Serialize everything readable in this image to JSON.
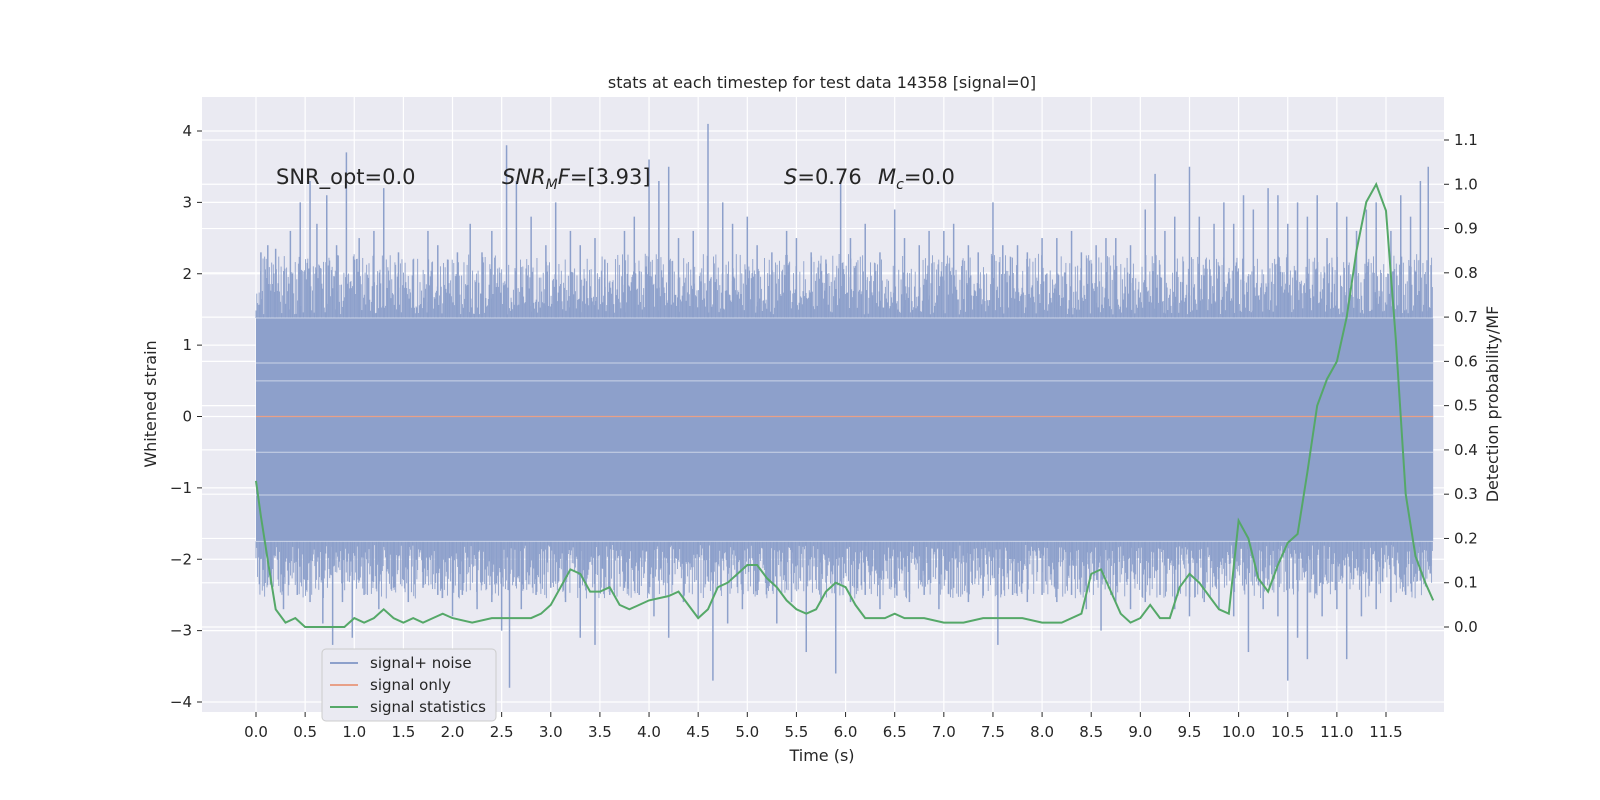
{
  "chart_data": {
    "type": "line",
    "title": "stats at each timestep for test data 14358 [signal=0]",
    "xlabel": "Time (s)",
    "ylabel": "Whitened strain",
    "y2label": "Detection probability/MF",
    "xlim": [
      -0.58,
      12.6
    ],
    "ylim": [
      -4.15,
      4.45
    ],
    "y2lim": [
      -0.2,
      1.2
    ],
    "xticks": [
      0.0,
      0.5,
      1.0,
      1.5,
      2.0,
      2.5,
      3.0,
      3.5,
      4.0,
      4.5,
      5.0,
      5.5,
      6.0,
      6.5,
      7.0,
      7.5,
      8.0,
      8.5,
      9.0,
      9.5,
      10.0,
      10.5,
      11.0,
      11.5
    ],
    "xtick_labels": [
      "0.0",
      "0.5",
      "1.0",
      "1.5",
      "2.0",
      "2.5",
      "3.0",
      "3.5",
      "4.0",
      "4.5",
      "5.0",
      "5.5",
      "6.0",
      "6.5",
      "7.0",
      "7.5",
      "8.0",
      "8.5",
      "9.0",
      "9.5",
      "10.0",
      "10.5",
      "11.0",
      "11.5"
    ],
    "yticks": [
      4,
      3,
      2,
      1,
      0,
      -1,
      -2,
      -3,
      -4
    ],
    "ytick_labels": [
      "4",
      "3",
      "2",
      "1",
      "0",
      "−1",
      "−2",
      "−3",
      "−4"
    ],
    "y2ticks": [
      1.1,
      1.0,
      0.9,
      0.8,
      0.7,
      0.6,
      0.5,
      0.4,
      0.3,
      0.2,
      0.1,
      0.0
    ],
    "y2tick_labels": [
      "1.1",
      "1.0",
      "0.9",
      "0.8",
      "0.7",
      "0.6",
      "0.5",
      "0.4",
      "0.3",
      "0.2",
      "0.1",
      "0.0"
    ],
    "annotations": {
      "snr_opt": "SNR_opt=0.0",
      "snr_mf_sym": "SNR",
      "snr_mf_sub": "M",
      "snr_mf_f": "F",
      "snr_mf_val": "=[3.93]",
      "s_sym": "S",
      "s_val": "=0.76",
      "mc_sym": "M",
      "mc_sub": "c",
      "mc_val": "=0.0"
    },
    "legend": {
      "placement": "lower-left",
      "entries": [
        "signal+ noise",
        "signal only",
        "signal statistics"
      ]
    },
    "series": [
      {
        "name": "signal+ noise",
        "color": "#8da0cb",
        "axis": "left",
        "x_start": 0.0,
        "x_end": 11.98,
        "band_upper": 1.38,
        "band_lower": -1.75,
        "spikes_up": [
          [
            0.05,
            2.3
          ],
          [
            0.12,
            2.4
          ],
          [
            0.2,
            2.35
          ],
          [
            0.35,
            2.6
          ],
          [
            0.45,
            3.0
          ],
          [
            0.55,
            3.3
          ],
          [
            0.62,
            2.7
          ],
          [
            0.72,
            3.1
          ],
          [
            0.82,
            2.4
          ],
          [
            0.92,
            3.7
          ],
          [
            1.05,
            2.5
          ],
          [
            1.2,
            2.6
          ],
          [
            1.3,
            3.2
          ],
          [
            1.45,
            2.3
          ],
          [
            1.6,
            2.2
          ],
          [
            1.75,
            2.6
          ],
          [
            1.85,
            2.4
          ],
          [
            1.95,
            2.2
          ],
          [
            2.05,
            2.3
          ],
          [
            2.18,
            2.7
          ],
          [
            2.3,
            2.3
          ],
          [
            2.4,
            2.6
          ],
          [
            2.55,
            3.8
          ],
          [
            2.65,
            3.3
          ],
          [
            2.8,
            2.8
          ],
          [
            2.95,
            2.4
          ],
          [
            3.05,
            3.0
          ],
          [
            3.2,
            2.6
          ],
          [
            3.3,
            2.4
          ],
          [
            3.45,
            2.5
          ],
          [
            3.55,
            2.2
          ],
          [
            3.75,
            2.6
          ],
          [
            3.85,
            2.8
          ],
          [
            4.0,
            3.6
          ],
          [
            4.1,
            3.3
          ],
          [
            4.2,
            3.5
          ],
          [
            4.3,
            2.5
          ],
          [
            4.45,
            2.6
          ],
          [
            4.6,
            4.1
          ],
          [
            4.75,
            3.0
          ],
          [
            4.85,
            2.7
          ],
          [
            5.0,
            2.8
          ],
          [
            5.1,
            2.4
          ],
          [
            5.25,
            2.3
          ],
          [
            5.4,
            2.6
          ],
          [
            5.5,
            2.5
          ],
          [
            5.65,
            2.3
          ],
          [
            5.8,
            2.2
          ],
          [
            5.95,
            3.3
          ],
          [
            6.05,
            2.5
          ],
          [
            6.2,
            2.7
          ],
          [
            6.35,
            2.3
          ],
          [
            6.5,
            2.9
          ],
          [
            6.6,
            2.5
          ],
          [
            6.75,
            2.4
          ],
          [
            6.85,
            2.6
          ],
          [
            7.0,
            2.6
          ],
          [
            7.1,
            2.7
          ],
          [
            7.25,
            2.4
          ],
          [
            7.35,
            2.3
          ],
          [
            7.5,
            3.0
          ],
          [
            7.6,
            2.4
          ],
          [
            7.75,
            2.4
          ],
          [
            7.85,
            2.3
          ],
          [
            8.0,
            2.5
          ],
          [
            8.15,
            2.5
          ],
          [
            8.3,
            2.6
          ],
          [
            8.4,
            2.3
          ],
          [
            8.55,
            2.4
          ],
          [
            8.65,
            2.5
          ],
          [
            8.75,
            2.5
          ],
          [
            8.9,
            2.4
          ],
          [
            9.05,
            2.9
          ],
          [
            9.15,
            3.4
          ],
          [
            9.25,
            2.6
          ],
          [
            9.35,
            2.8
          ],
          [
            9.5,
            3.5
          ],
          [
            9.6,
            2.8
          ],
          [
            9.75,
            2.7
          ],
          [
            9.85,
            3.0
          ],
          [
            9.95,
            2.7
          ],
          [
            10.05,
            3.1
          ],
          [
            10.15,
            2.9
          ],
          [
            10.3,
            3.2
          ],
          [
            10.4,
            3.1
          ],
          [
            10.5,
            2.7
          ],
          [
            10.6,
            3.0
          ],
          [
            10.7,
            2.8
          ],
          [
            10.8,
            3.1
          ],
          [
            10.9,
            2.5
          ],
          [
            11.0,
            3.0
          ],
          [
            11.1,
            2.8
          ],
          [
            11.2,
            2.6
          ],
          [
            11.3,
            2.9
          ],
          [
            11.4,
            3.0
          ],
          [
            11.55,
            2.6
          ],
          [
            11.65,
            3.1
          ],
          [
            11.75,
            2.8
          ],
          [
            11.85,
            3.3
          ],
          [
            11.93,
            3.5
          ]
        ],
        "spikes_down": [
          [
            0.05,
            -2.0
          ],
          [
            0.15,
            -2.2
          ],
          [
            0.28,
            -2.7
          ],
          [
            0.42,
            -2.5
          ],
          [
            0.55,
            -2.6
          ],
          [
            0.68,
            -2.9
          ],
          [
            0.78,
            -3.2
          ],
          [
            0.88,
            -2.6
          ],
          [
            0.98,
            -3.1
          ],
          [
            1.1,
            -2.5
          ],
          [
            1.25,
            -2.7
          ],
          [
            1.4,
            -2.4
          ],
          [
            1.55,
            -2.6
          ],
          [
            1.7,
            -2.4
          ],
          [
            1.85,
            -2.5
          ],
          [
            2.0,
            -2.8
          ],
          [
            2.1,
            -2.5
          ],
          [
            2.25,
            -2.7
          ],
          [
            2.4,
            -2.6
          ],
          [
            2.5,
            -3.0
          ],
          [
            2.58,
            -3.8
          ],
          [
            2.7,
            -2.7
          ],
          [
            2.85,
            -2.5
          ],
          [
            3.0,
            -2.4
          ],
          [
            3.15,
            -2.6
          ],
          [
            3.3,
            -3.1
          ],
          [
            3.45,
            -3.2
          ],
          [
            3.6,
            -2.5
          ],
          [
            3.75,
            -2.4
          ],
          [
            3.9,
            -2.5
          ],
          [
            4.05,
            -2.8
          ],
          [
            4.2,
            -3.1
          ],
          [
            4.35,
            -2.6
          ],
          [
            4.5,
            -2.8
          ],
          [
            4.65,
            -3.7
          ],
          [
            4.8,
            -2.9
          ],
          [
            4.95,
            -2.7
          ],
          [
            5.1,
            -2.5
          ],
          [
            5.3,
            -2.9
          ],
          [
            5.45,
            -2.6
          ],
          [
            5.6,
            -3.3
          ],
          [
            5.75,
            -2.6
          ],
          [
            5.9,
            -3.6
          ],
          [
            6.05,
            -2.6
          ],
          [
            6.2,
            -2.5
          ],
          [
            6.35,
            -2.7
          ],
          [
            6.5,
            -2.4
          ],
          [
            6.65,
            -2.6
          ],
          [
            6.8,
            -2.5
          ],
          [
            6.95,
            -2.7
          ],
          [
            7.1,
            -2.4
          ],
          [
            7.25,
            -2.6
          ],
          [
            7.4,
            -2.5
          ],
          [
            7.55,
            -3.2
          ],
          [
            7.7,
            -2.5
          ],
          [
            7.85,
            -2.6
          ],
          [
            8.0,
            -2.5
          ],
          [
            8.15,
            -2.6
          ],
          [
            8.3,
            -2.5
          ],
          [
            8.45,
            -2.7
          ],
          [
            8.6,
            -3.0
          ],
          [
            8.75,
            -2.6
          ],
          [
            8.9,
            -2.7
          ],
          [
            9.05,
            -2.6
          ],
          [
            9.2,
            -2.5
          ],
          [
            9.35,
            -2.7
          ],
          [
            9.5,
            -2.8
          ],
          [
            9.65,
            -2.6
          ],
          [
            9.8,
            -2.7
          ],
          [
            9.95,
            -2.8
          ],
          [
            10.1,
            -3.3
          ],
          [
            10.25,
            -2.7
          ],
          [
            10.4,
            -2.8
          ],
          [
            10.5,
            -3.7
          ],
          [
            10.6,
            -3.1
          ],
          [
            10.7,
            -3.4
          ],
          [
            10.85,
            -2.8
          ],
          [
            11.0,
            -2.7
          ],
          [
            11.1,
            -3.4
          ],
          [
            11.25,
            -2.8
          ],
          [
            11.4,
            -2.7
          ],
          [
            11.55,
            -2.6
          ],
          [
            11.7,
            -2.5
          ],
          [
            11.85,
            -2.3
          ],
          [
            11.95,
            -2.2
          ]
        ]
      },
      {
        "name": "signal only",
        "color": "#e8a088",
        "axis": "left",
        "x": [
          0.0,
          11.98
        ],
        "y": [
          0.0,
          0.0
        ]
      },
      {
        "name": "signal statistics",
        "color": "#55a868",
        "axis": "right",
        "x": [
          0.0,
          0.05,
          0.12,
          0.2,
          0.3,
          0.4,
          0.5,
          0.6,
          0.75,
          0.9,
          1.0,
          1.1,
          1.2,
          1.3,
          1.4,
          1.5,
          1.6,
          1.7,
          1.8,
          1.9,
          2.0,
          2.2,
          2.4,
          2.6,
          2.8,
          2.9,
          3.0,
          3.1,
          3.2,
          3.3,
          3.4,
          3.5,
          3.6,
          3.7,
          3.8,
          3.9,
          4.0,
          4.2,
          4.3,
          4.4,
          4.5,
          4.6,
          4.7,
          4.8,
          5.0,
          5.1,
          5.2,
          5.3,
          5.4,
          5.5,
          5.6,
          5.7,
          5.8,
          5.9,
          6.0,
          6.1,
          6.2,
          6.4,
          6.5,
          6.6,
          6.8,
          7.0,
          7.2,
          7.4,
          7.6,
          7.8,
          8.0,
          8.2,
          8.4,
          8.5,
          8.6,
          8.7,
          8.8,
          8.9,
          9.0,
          9.1,
          9.2,
          9.3,
          9.4,
          9.5,
          9.6,
          9.7,
          9.8,
          9.9,
          10.0,
          10.1,
          10.2,
          10.3,
          10.4,
          10.5,
          10.6,
          10.7,
          10.8,
          10.9,
          11.0,
          11.1,
          11.2,
          11.3,
          11.4,
          11.5,
          11.6,
          11.7,
          11.8,
          11.9,
          11.98
        ],
        "y": [
          0.33,
          0.25,
          0.15,
          0.04,
          0.01,
          0.02,
          0.0,
          0.0,
          0.0,
          0.0,
          0.02,
          0.01,
          0.02,
          0.04,
          0.02,
          0.01,
          0.02,
          0.01,
          0.02,
          0.03,
          0.02,
          0.01,
          0.02,
          0.02,
          0.02,
          0.03,
          0.05,
          0.09,
          0.13,
          0.12,
          0.08,
          0.08,
          0.09,
          0.05,
          0.04,
          0.05,
          0.06,
          0.07,
          0.08,
          0.05,
          0.02,
          0.04,
          0.09,
          0.1,
          0.14,
          0.14,
          0.11,
          0.09,
          0.06,
          0.04,
          0.03,
          0.04,
          0.08,
          0.1,
          0.09,
          0.05,
          0.02,
          0.02,
          0.03,
          0.02,
          0.02,
          0.01,
          0.01,
          0.02,
          0.02,
          0.02,
          0.01,
          0.01,
          0.03,
          0.12,
          0.13,
          0.08,
          0.03,
          0.01,
          0.02,
          0.05,
          0.02,
          0.02,
          0.09,
          0.12,
          0.1,
          0.07,
          0.04,
          0.03,
          0.24,
          0.2,
          0.11,
          0.08,
          0.14,
          0.19,
          0.21,
          0.35,
          0.5,
          0.56,
          0.6,
          0.7,
          0.85,
          0.96,
          1.0,
          0.94,
          0.65,
          0.3,
          0.16,
          0.1,
          0.06
        ]
      }
    ]
  }
}
